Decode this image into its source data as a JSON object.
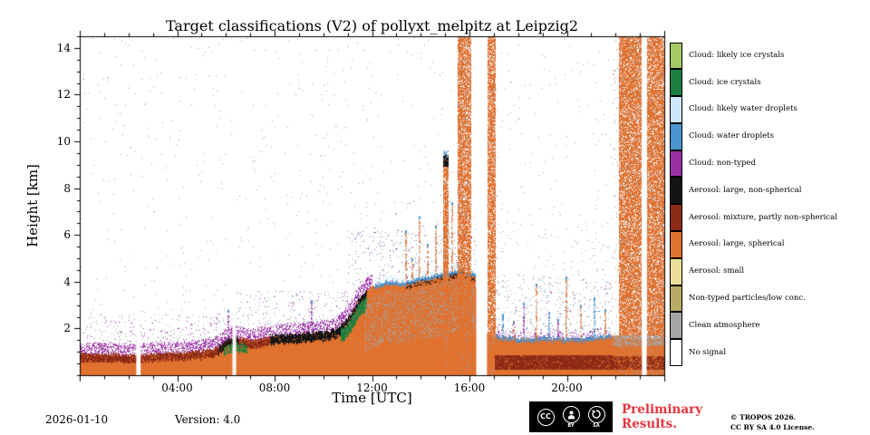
{
  "chart_data": {
    "type": "heatmap",
    "title": "Target classifications (V2) of pollyxt_melpitz at Leipzig2",
    "xlabel": "Time [UTC]",
    "ylabel": "Height [km]",
    "x_range_hours": [
      0,
      24
    ],
    "y_range_km": [
      0,
      14.5
    ],
    "x_minor_tick_hours": 1,
    "y_minor_tick_km": 0.5,
    "grid": false,
    "legend_position": "right",
    "xticks": [
      {
        "hour": 4,
        "label": "04:00"
      },
      {
        "hour": 8,
        "label": "08:00"
      },
      {
        "hour": 12,
        "label": "12:00"
      },
      {
        "hour": 16,
        "label": "16:00"
      },
      {
        "hour": 20,
        "label": "20:00"
      }
    ],
    "yticks": [
      {
        "km": 2,
        "label": "2"
      },
      {
        "km": 4,
        "label": "4"
      },
      {
        "km": 6,
        "label": "6"
      },
      {
        "km": 8,
        "label": "8"
      },
      {
        "km": 10,
        "label": "10"
      },
      {
        "km": 12,
        "label": "12"
      },
      {
        "km": 14,
        "label": "14"
      }
    ],
    "classes": [
      {
        "label": "Cloud: likely ice crystals",
        "color": "#a6c965"
      },
      {
        "label": "Cloud: ice crystals",
        "color": "#1d8040"
      },
      {
        "label": "Cloud: likely water droplets",
        "color": "#cde9f9"
      },
      {
        "label": "Cloud: water droplets",
        "color": "#4a94d0"
      },
      {
        "label": "Cloud: non-typed",
        "color": "#9b2fa5"
      },
      {
        "label": "Aerosol: large, non-spherical",
        "color": "#141414"
      },
      {
        "label": "Aerosol: mixture, partly non-spherical",
        "color": "#8c2a16"
      },
      {
        "label": "Aerosol: large, spherical",
        "color": "#e0712f"
      },
      {
        "label": "Aerosol: small",
        "color": "#ecdf9a"
      },
      {
        "label": "Non-typed particles/low conc.",
        "color": "#b8ab66"
      },
      {
        "label": "Clean atmosphere",
        "color": "#a5a5a5"
      },
      {
        "label": "No signal",
        "color": "#ffffff"
      }
    ],
    "field": {
      "boundary_layer_top_profile_km": [
        [
          0,
          0.95
        ],
        [
          1,
          0.9
        ],
        [
          2,
          0.85
        ],
        [
          3,
          0.9
        ],
        [
          4,
          0.95
        ],
        [
          5,
          1.0
        ],
        [
          5.7,
          1.2
        ],
        [
          6.1,
          1.55
        ],
        [
          6.6,
          1.6
        ],
        [
          7,
          1.5
        ],
        [
          7.5,
          1.55
        ],
        [
          8,
          1.7
        ],
        [
          9,
          1.75
        ],
        [
          10,
          1.85
        ],
        [
          10.6,
          2.0
        ],
        [
          11,
          2.4
        ],
        [
          11.5,
          3.3
        ],
        [
          12,
          3.8
        ],
        [
          12.7,
          4.0
        ],
        [
          13.2,
          3.95
        ],
        [
          14,
          4.15
        ],
        [
          15,
          4.35
        ],
        [
          15.6,
          4.5
        ],
        [
          16.25,
          4.3
        ],
        [
          16.4,
          1.8
        ],
        [
          17.05,
          1.7
        ],
        [
          18,
          1.55
        ],
        [
          19,
          1.6
        ],
        [
          20,
          1.55
        ],
        [
          21,
          1.6
        ],
        [
          21.8,
          1.7
        ],
        [
          22.5,
          1.6
        ],
        [
          24,
          1.55
        ]
      ],
      "top_jitter_km": 0.15,
      "base_class": 7,
      "caps": [
        [
          0,
          10.6,
          4,
          0,
          0.45,
          0.45
        ],
        [
          10.6,
          12.0,
          4,
          0,
          0.5,
          0.5
        ],
        [
          0,
          6.25,
          6,
          -0.3,
          0,
          0.8
        ],
        [
          6.45,
          7.8,
          6,
          -0.35,
          -0.05,
          0.85
        ],
        [
          5.7,
          6.5,
          5,
          -0.3,
          0,
          0.85
        ],
        [
          7.8,
          10.8,
          5,
          -0.35,
          0,
          0.9
        ],
        [
          5.9,
          6.9,
          1,
          -0.6,
          -0.28,
          0.7
        ],
        [
          10.7,
          11.8,
          1,
          -0.75,
          -0.2,
          0.9
        ],
        [
          10.8,
          11.8,
          5,
          -0.2,
          0,
          0.9
        ],
        [
          11.7,
          16.25,
          10,
          -2.6,
          -0.4,
          0.2
        ],
        [
          12.1,
          16.25,
          3,
          -0.12,
          0.03,
          0.95
        ],
        [
          12.1,
          16.25,
          2,
          0.03,
          0.3,
          0.25
        ],
        [
          13.4,
          16.25,
          5,
          -0.3,
          -0.12,
          0.35
        ],
        [
          17.05,
          21.85,
          3,
          -0.12,
          0.03,
          0.75
        ],
        [
          17.05,
          21.8,
          4,
          0.03,
          0.3,
          0.2
        ]
      ],
      "bands": [
        [
          17.05,
          21.85,
          0.25,
          0.85,
          6,
          0.9
        ],
        [
          21.85,
          24,
          0.25,
          0.8,
          6,
          0.7
        ],
        [
          0,
          2.3,
          0.55,
          0.8,
          6,
          0.45
        ],
        [
          14.95,
          15.12,
          8.95,
          9.4,
          5,
          0.85
        ],
        [
          14.95,
          15.12,
          9.35,
          9.6,
          3,
          0.5
        ],
        [
          21.9,
          24,
          1.25,
          1.7,
          10,
          0.55
        ]
      ],
      "precip_columns": [
        [
          14.95,
          15.12,
          9.35,
          0.8
        ],
        [
          15.55,
          15.78,
          14.5,
          0.75
        ],
        [
          15.85,
          16.05,
          14.5,
          0.7
        ],
        [
          16.75,
          17.05,
          14.5,
          0.75
        ],
        [
          22.15,
          23.05,
          14.5,
          0.75
        ],
        [
          23.3,
          24,
          14.5,
          0.75
        ]
      ],
      "streaks": [
        [
          6.05,
          2.8,
          4
        ],
        [
          9.5,
          3.2,
          4
        ],
        [
          13.35,
          6.2,
          7
        ],
        [
          13.6,
          5.0,
          7
        ],
        [
          13.9,
          6.8,
          7
        ],
        [
          14.25,
          5.6,
          7
        ],
        [
          14.6,
          6.4,
          7
        ],
        [
          15.25,
          7.4,
          7
        ],
        [
          17.35,
          2.6,
          3
        ],
        [
          17.8,
          2.3,
          7
        ],
        [
          18.2,
          3.1,
          4
        ],
        [
          18.7,
          3.9,
          7
        ],
        [
          19.25,
          2.7,
          3
        ],
        [
          19.6,
          2.4,
          4
        ],
        [
          19.95,
          4.2,
          7
        ],
        [
          20.55,
          3.0,
          7
        ],
        [
          21.1,
          3.3,
          3
        ],
        [
          21.55,
          2.8,
          7
        ]
      ],
      "noise_regions": [
        [
          0,
          6.3,
          0.9,
          2.6,
          0.05,
          [
            10,
            10,
            10,
            4,
            4,
            2
          ]
        ],
        [
          6.3,
          11,
          1.6,
          3.6,
          0.05,
          [
            10,
            10,
            10,
            4,
            4,
            2,
            3
          ]
        ],
        [
          0,
          24,
          0,
          14.5,
          0.004,
          [
            10
          ]
        ],
        [
          11,
          16.3,
          3.8,
          6.2,
          0.04,
          [
            2,
            3,
            10,
            10,
            4
          ]
        ],
        [
          16.3,
          21.9,
          1.8,
          4.3,
          0.045,
          [
            10,
            10,
            10,
            3,
            4,
            2
          ]
        ],
        [
          16.3,
          21.9,
          4.3,
          6.5,
          0.012,
          [
            10,
            10,
            2
          ]
        ],
        [
          11.5,
          16.3,
          5.5,
          7.5,
          0.01,
          [
            10,
            10,
            2,
            4
          ]
        ],
        [
          21.9,
          24,
          1.8,
          14.5,
          0.02,
          [
            10,
            7
          ]
        ]
      ],
      "no_signal_gaps": [
        [
          2.32,
          2.5
        ],
        [
          6.27,
          6.42
        ],
        [
          16.28,
          16.72
        ],
        [
          23.08,
          23.28
        ]
      ]
    }
  },
  "footer": {
    "date": "2026-01-10",
    "version": "Version: 4.0",
    "preliminary_line1": "Preliminary",
    "preliminary_line2": "Results.",
    "preliminary_color": "#e8333f",
    "copyright_line1": "© TROPOS 2026.",
    "copyright_line2": "CC BY SA 4.0 License.",
    "cc": {
      "cc": "CC",
      "by": "BY",
      "sa": "SA"
    }
  }
}
